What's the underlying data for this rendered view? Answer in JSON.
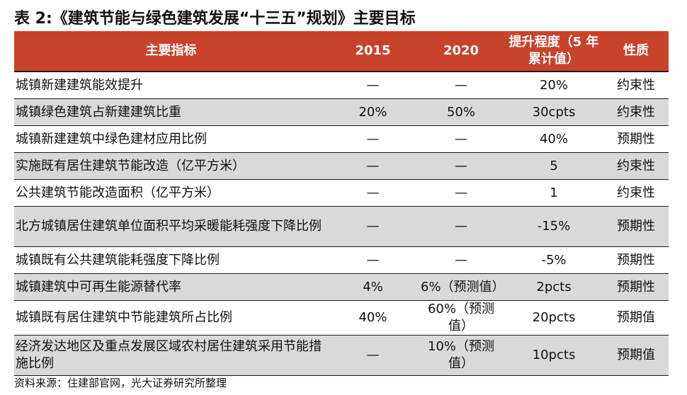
{
  "title": "表 2:《建筑节能与绿色建筑发展“十三五”规划》主要目标",
  "table": {
    "headers": [
      "主要指标",
      "2015",
      "2020",
      "提升程度（5 年累计值）",
      "性质"
    ],
    "rows": [
      {
        "indicator": "城镇新建建筑能效提升",
        "y2015": "—",
        "y2020": "—",
        "improvement": "20%",
        "nature": "约束性"
      },
      {
        "indicator": "城镇绿色建筑占新建建筑比重",
        "y2015": "20%",
        "y2020": "50%",
        "improvement": "30cpts",
        "nature": "约束性"
      },
      {
        "indicator": "城镇新建建筑中绿色建材应用比例",
        "y2015": "—",
        "y2020": "—",
        "improvement": "40%",
        "nature": "预期性"
      },
      {
        "indicator": "实施既有居住建筑节能改造（亿平方米）",
        "y2015": "—",
        "y2020": "—",
        "improvement": "5",
        "nature": "约束性"
      },
      {
        "indicator": "公共建筑节能改造面积（亿平方米）",
        "y2015": "—",
        "y2020": "—",
        "improvement": "1",
        "nature": "约束性"
      },
      {
        "indicator": "北方城镇居住建筑单位面积平均采暖能耗强度下降比例",
        "y2015": "—",
        "y2020": "—",
        "improvement": "-15%",
        "nature": "预期性"
      },
      {
        "indicator": "城镇既有公共建筑能耗强度下降比例",
        "y2015": "—",
        "y2020": "—",
        "improvement": "-5%",
        "nature": "预期性"
      },
      {
        "indicator": "城镇建筑中可再生能源替代率",
        "y2015": "4%",
        "y2020": "6%（预测值）",
        "improvement": "2pcts",
        "nature": "预期性"
      },
      {
        "indicator": "城镇既有居住建筑中节能建筑所占比例",
        "y2015": "40%",
        "y2020": "60%（预测值）",
        "improvement": "20pcts",
        "nature": "预期值"
      },
      {
        "indicator": "经济发达地区及重点发展区域农村居住建筑采用节能措施比例",
        "y2015": "—",
        "y2020": "10%（预测值）",
        "improvement": "10pcts",
        "nature": "预期值"
      }
    ]
  },
  "source": "资料来源：住建部官网，光大证券研究所整理",
  "colors": {
    "header_bg": "#c9432b",
    "header_text": "#ffffff",
    "stripe_gray": "#d9d9d9",
    "border": "#1a1a1a"
  }
}
